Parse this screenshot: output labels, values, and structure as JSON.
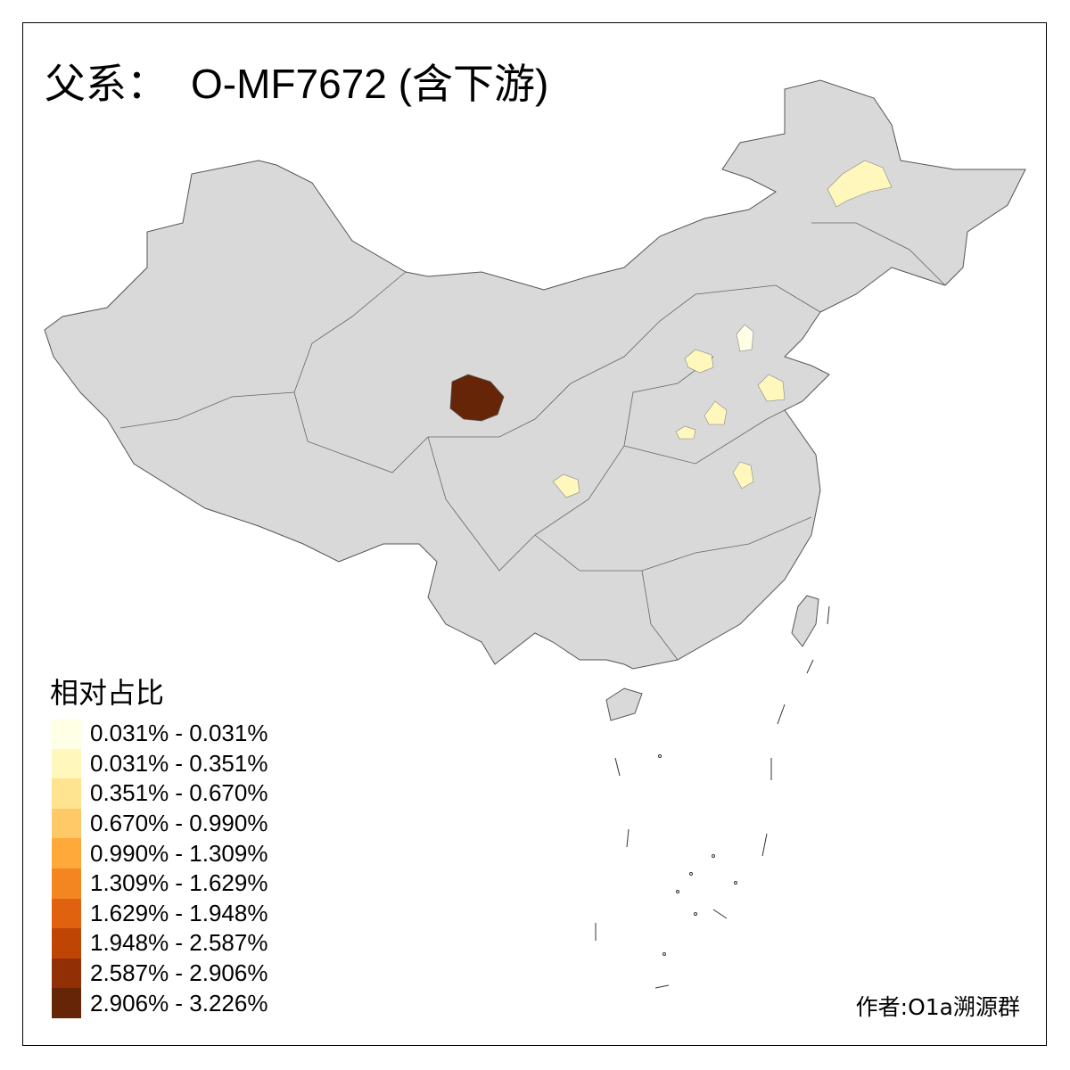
{
  "title": {
    "prefix": "父系：",
    "haplogroup": "O-MF7672 (含下游)"
  },
  "legend": {
    "title": "相对占比",
    "items": [
      {
        "label": "0.031% - 0.031%",
        "color": "#ffffe5"
      },
      {
        "label": "0.031% - 0.351%",
        "color": "#fff7bc"
      },
      {
        "label": "0.351% - 0.670%",
        "color": "#fee391"
      },
      {
        "label": "0.670% - 0.990%",
        "color": "#fec966"
      },
      {
        "label": "0.990% - 1.309%",
        "color": "#fea93a"
      },
      {
        "label": "1.309% - 1.629%",
        "color": "#f48621"
      },
      {
        "label": "1.629% - 1.948%",
        "color": "#e0620f"
      },
      {
        "label": "1.948% - 2.587%",
        "color": "#bf4504"
      },
      {
        "label": "2.587% - 2.906%",
        "color": "#923005"
      },
      {
        "label": "2.906% - 3.226%",
        "color": "#662506"
      }
    ]
  },
  "map": {
    "base_color": "#d9d9d9",
    "border_color": "#555555"
  },
  "author": "作者:O1a溯源群"
}
